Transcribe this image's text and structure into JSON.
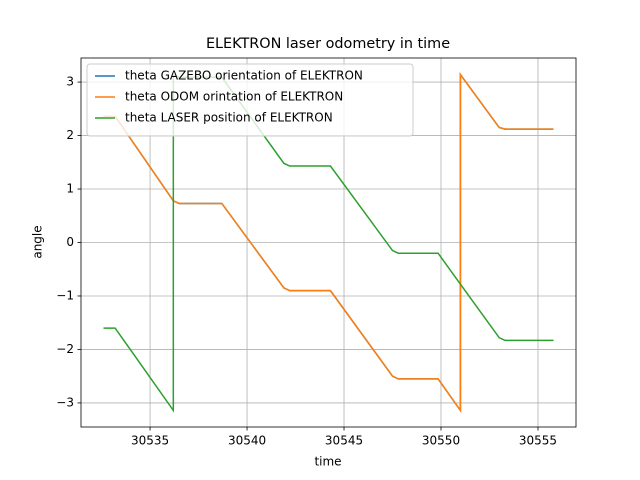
{
  "chart_data": {
    "type": "line",
    "title": "ELEKTRON laser odometry in time",
    "xlabel": "time",
    "ylabel": "angle",
    "x": [
      30532.6,
      30533.2,
      30536.2,
      30536.2,
      30536.5,
      30538.7,
      30541.9,
      30542.2,
      30544.3,
      30547.5,
      30547.8,
      30549.85,
      30551.0,
      30551.0,
      30553.0,
      30553.3,
      30555.8
    ],
    "series": [
      {
        "name": "theta GAZEBO orientation of ELEKTRON",
        "color": "#1f77b4",
        "values": [
          2.36,
          2.36,
          0.78,
          0.78,
          0.73,
          0.73,
          -0.85,
          -0.9,
          -0.9,
          -2.5,
          -2.55,
          -2.55,
          -3.14,
          3.14,
          2.15,
          2.12,
          2.12
        ]
      },
      {
        "name": "theta ODOM orintation of ELEKTRON",
        "color": "#ff7f0e",
        "values": [
          2.36,
          2.36,
          0.78,
          0.78,
          0.73,
          0.73,
          -0.85,
          -0.9,
          -0.9,
          -2.5,
          -2.55,
          -2.55,
          -3.14,
          3.14,
          2.15,
          2.12,
          2.12
        ]
      },
      {
        "name": "theta LASER position of ELEKTRON",
        "color": "#2ca02c",
        "values": [
          -1.6,
          -1.6,
          -3.14,
          3.14,
          3.09,
          3.09,
          1.48,
          1.43,
          1.43,
          -0.15,
          -0.2,
          -0.2,
          -0.78,
          -0.78,
          -1.78,
          -1.83,
          -1.83
        ]
      }
    ],
    "xlim": [
      30531.44,
      30556.96
    ],
    "xticks": [
      30535,
      30540,
      30545,
      30550,
      30555
    ],
    "ylim": [
      -3.45,
      3.45
    ],
    "yticks": [
      {
        "value": -3,
        "label": "−3"
      },
      {
        "value": -2,
        "label": "−2"
      },
      {
        "value": -1,
        "label": "−1"
      },
      0,
      1,
      2,
      3
    ],
    "grid": true,
    "legend": "upper left"
  }
}
